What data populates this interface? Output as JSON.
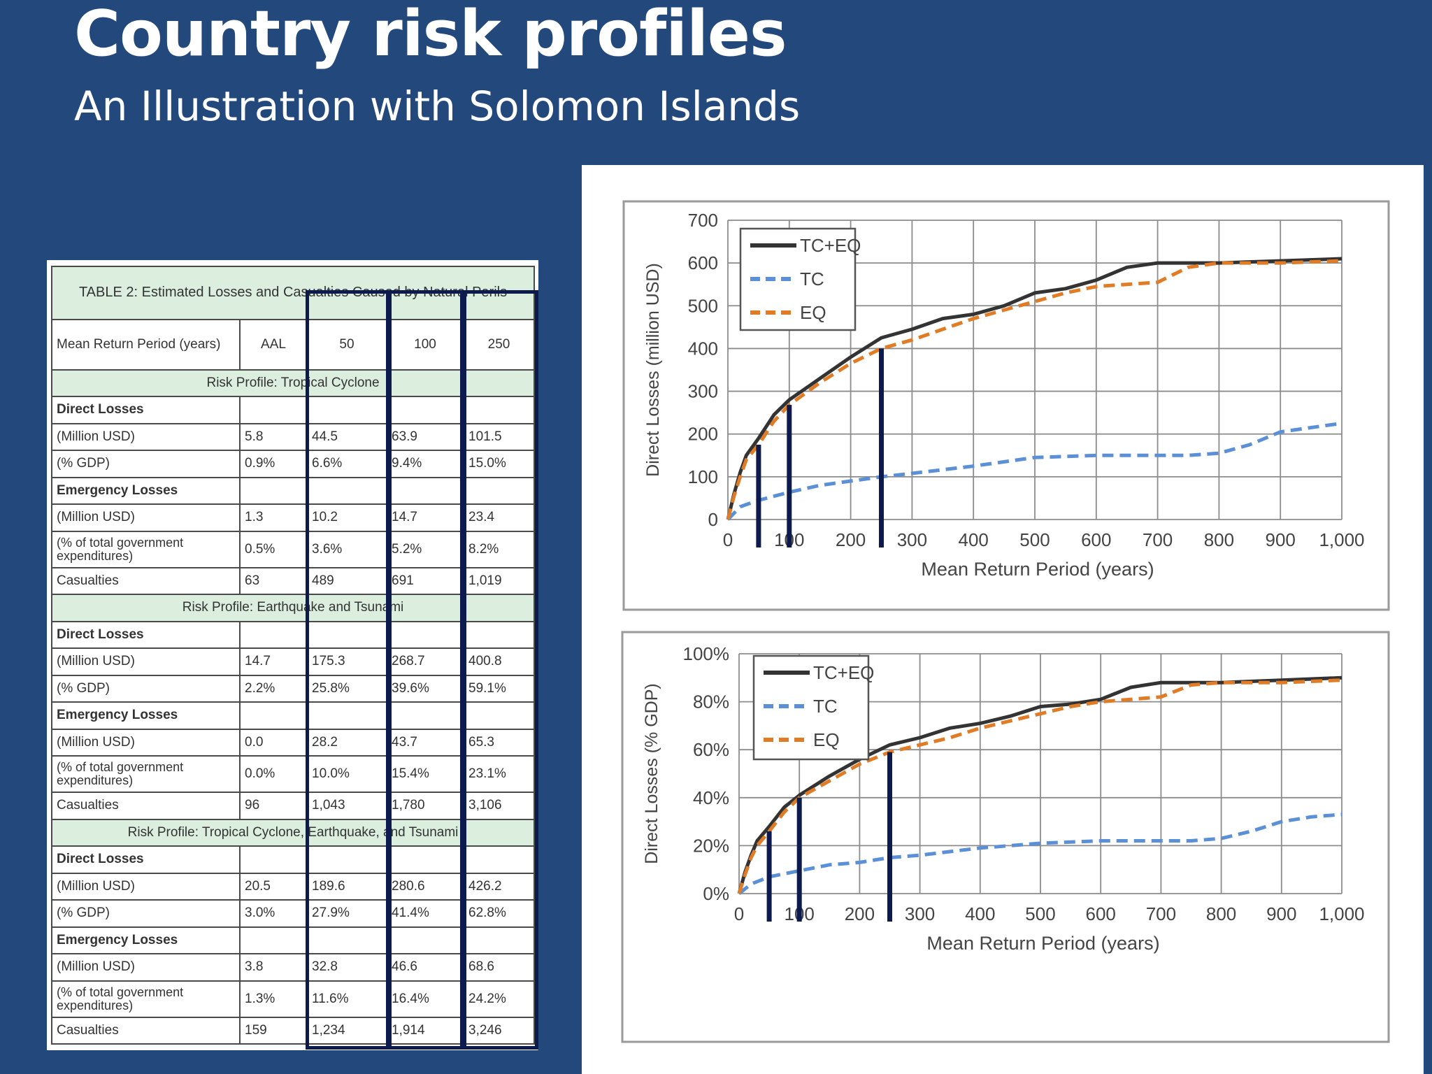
{
  "slide": {
    "title": "Country risk profiles",
    "subtitle": "An Illustration with Solomon Islands"
  },
  "table": {
    "caption": "TABLE 2: Estimated Losses and Casualties Caused by Natural Perils",
    "header": [
      "Mean Return Period (years)",
      "AAL",
      "50",
      "100",
      "250"
    ],
    "rows": [
      {
        "type": "section",
        "label": "Risk Profile: Tropical Cyclone"
      },
      {
        "type": "group",
        "label": "Direct Losses"
      },
      {
        "type": "data",
        "label": "(Million USD)",
        "values": [
          "5.8",
          "44.5",
          "63.9",
          "101.5"
        ]
      },
      {
        "type": "data",
        "label": "(% GDP)",
        "values": [
          "0.9%",
          "6.6%",
          "9.4%",
          "15.0%"
        ]
      },
      {
        "type": "group",
        "label": "Emergency Losses"
      },
      {
        "type": "data",
        "label": "(Million USD)",
        "values": [
          "1.3",
          "10.2",
          "14.7",
          "23.4"
        ]
      },
      {
        "type": "data2",
        "label": "(% of total government expenditures)",
        "values": [
          "0.5%",
          "3.6%",
          "5.2%",
          "8.2%"
        ]
      },
      {
        "type": "data",
        "label": "Casualties",
        "values": [
          "63",
          "489",
          "691",
          "1,019"
        ]
      },
      {
        "type": "section",
        "label": "Risk Profile: Earthquake and Tsunami"
      },
      {
        "type": "group",
        "label": "Direct Losses"
      },
      {
        "type": "data",
        "label": "(Million USD)",
        "values": [
          "14.7",
          "175.3",
          "268.7",
          "400.8"
        ]
      },
      {
        "type": "data",
        "label": "(% GDP)",
        "values": [
          "2.2%",
          "25.8%",
          "39.6%",
          "59.1%"
        ]
      },
      {
        "type": "group",
        "label": "Emergency Losses"
      },
      {
        "type": "data",
        "label": "(Million USD)",
        "values": [
          "0.0",
          "28.2",
          "43.7",
          "65.3"
        ]
      },
      {
        "type": "data2",
        "label": "(% of total government expenditures)",
        "values": [
          "0.0%",
          "10.0%",
          "15.4%",
          "23.1%"
        ]
      },
      {
        "type": "data",
        "label": "Casualties",
        "values": [
          "96",
          "1,043",
          "1,780",
          "3,106"
        ]
      },
      {
        "type": "section",
        "label": "Risk Profile: Tropical Cyclone, Earthquake, and Tsunami"
      },
      {
        "type": "group",
        "label": "Direct Losses"
      },
      {
        "type": "data",
        "label": "(Million USD)",
        "values": [
          "20.5",
          "189.6",
          "280.6",
          "426.2"
        ]
      },
      {
        "type": "data",
        "label": "(% GDP)",
        "values": [
          "3.0%",
          "27.9%",
          "41.4%",
          "62.8%"
        ]
      },
      {
        "type": "group",
        "label": "Emergency Losses"
      },
      {
        "type": "data",
        "label": "(Million USD)",
        "values": [
          "3.8",
          "32.8",
          "46.6",
          "68.6"
        ]
      },
      {
        "type": "data2",
        "label": "(% of total government expenditures)",
        "values": [
          "1.3%",
          "11.6%",
          "16.4%",
          "24.2%"
        ]
      },
      {
        "type": "data",
        "label": "Casualties",
        "values": [
          "159",
          "1,234",
          "1,914",
          "3,246"
        ]
      }
    ],
    "highlight_color": "#0d1a4d"
  },
  "chart_data": [
    {
      "type": "line",
      "title": "",
      "xlabel": "Mean Return Period (years)",
      "ylabel": "Direct Losses (million USD)",
      "xlim": [
        0,
        1000
      ],
      "ylim": [
        0,
        700
      ],
      "x_ticks": [
        0,
        100,
        200,
        300,
        400,
        500,
        600,
        700,
        800,
        900,
        1000
      ],
      "x_tick_labels": [
        "0",
        "100",
        "200",
        "300",
        "400",
        "500",
        "600",
        "700",
        "800",
        "900",
        "1,000"
      ],
      "y_ticks": [
        0,
        100,
        200,
        300,
        400,
        500,
        600,
        700
      ],
      "y_tick_labels": [
        "0",
        "100",
        "200",
        "300",
        "400",
        "500",
        "600",
        "700"
      ],
      "grid": true,
      "legend_position": "top-left",
      "markers": [
        50,
        100,
        250
      ],
      "marker_color": "#0d1a4d",
      "series": [
        {
          "name": "TC+EQ",
          "color": "#333333",
          "style": "solid",
          "x": [
            0,
            10,
            20,
            30,
            50,
            75,
            100,
            150,
            200,
            250,
            300,
            350,
            400,
            450,
            500,
            550,
            600,
            650,
            700,
            800,
            900,
            1000
          ],
          "y": [
            0,
            60,
            110,
            150,
            190,
            245,
            280,
            330,
            380,
            425,
            445,
            470,
            480,
            500,
            530,
            540,
            560,
            590,
            600,
            600,
            605,
            610
          ]
        },
        {
          "name": "TC",
          "color": "#5b8fd6",
          "style": "dashed",
          "x": [
            0,
            20,
            50,
            100,
            150,
            200,
            250,
            300,
            400,
            500,
            600,
            700,
            750,
            800,
            850,
            900,
            950,
            1000
          ],
          "y": [
            0,
            30,
            45,
            64,
            80,
            90,
            100,
            108,
            125,
            145,
            150,
            150,
            150,
            155,
            175,
            205,
            215,
            225
          ]
        },
        {
          "name": "EQ",
          "color": "#e07b26",
          "style": "dashed",
          "x": [
            0,
            10,
            20,
            30,
            50,
            75,
            100,
            150,
            200,
            250,
            300,
            350,
            400,
            450,
            500,
            550,
            600,
            650,
            700,
            750,
            800,
            900,
            1000
          ],
          "y": [
            0,
            55,
            100,
            140,
            175,
            230,
            268,
            320,
            365,
            400,
            420,
            445,
            470,
            490,
            510,
            530,
            545,
            550,
            555,
            590,
            600,
            600,
            605
          ]
        }
      ]
    },
    {
      "type": "line",
      "title": "",
      "xlabel": "Mean Return Period (years)",
      "ylabel": "Direct Losses (% GDP)",
      "xlim": [
        0,
        1000
      ],
      "ylim": [
        0,
        100
      ],
      "x_ticks": [
        0,
        100,
        200,
        300,
        400,
        500,
        600,
        700,
        800,
        900,
        1000
      ],
      "x_tick_labels": [
        "0",
        "100",
        "200",
        "300",
        "400",
        "500",
        "600",
        "700",
        "800",
        "900",
        "1,000"
      ],
      "y_ticks": [
        0,
        20,
        40,
        60,
        80,
        100
      ],
      "y_tick_labels": [
        "0%",
        "20%",
        "40%",
        "60%",
        "80%",
        "100%"
      ],
      "grid": true,
      "legend_position": "top-left",
      "markers": [
        50,
        100,
        250
      ],
      "marker_color": "#0d1a4d",
      "series": [
        {
          "name": "TC+EQ",
          "color": "#333333",
          "style": "solid",
          "x": [
            0,
            10,
            20,
            30,
            50,
            75,
            100,
            150,
            200,
            250,
            300,
            350,
            400,
            450,
            500,
            550,
            600,
            650,
            700,
            800,
            900,
            1000
          ],
          "y": [
            0,
            9,
            16,
            22,
            28,
            36,
            41,
            49,
            56,
            62,
            65,
            69,
            71,
            74,
            78,
            79,
            81,
            86,
            88,
            88,
            89,
            90
          ]
        },
        {
          "name": "TC",
          "color": "#5b8fd6",
          "style": "dashed",
          "x": [
            0,
            20,
            50,
            100,
            150,
            200,
            250,
            300,
            400,
            500,
            600,
            700,
            750,
            800,
            850,
            900,
            950,
            1000
          ],
          "y": [
            0,
            4,
            7,
            9.5,
            12,
            13,
            15,
            16,
            19,
            21,
            22,
            22,
            22,
            23,
            26,
            30,
            32,
            33
          ]
        },
        {
          "name": "EQ",
          "color": "#e07b26",
          "style": "dashed",
          "x": [
            0,
            10,
            20,
            30,
            50,
            75,
            100,
            150,
            200,
            250,
            300,
            350,
            400,
            450,
            500,
            550,
            600,
            650,
            700,
            750,
            800,
            900,
            1000
          ],
          "y": [
            0,
            8,
            15,
            20,
            26,
            34,
            40,
            47,
            54,
            59,
            62,
            65,
            69,
            72,
            75,
            78,
            80,
            81,
            82,
            87,
            88,
            88,
            89
          ]
        }
      ]
    }
  ]
}
